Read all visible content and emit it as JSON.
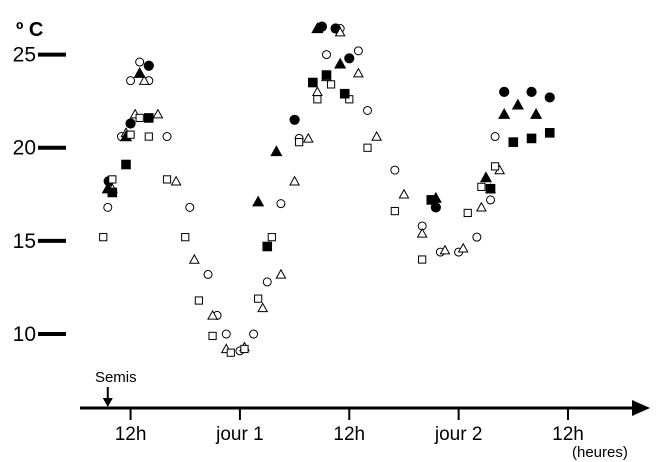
{
  "chart_data": {
    "type": "scatter",
    "title": "",
    "ylabel": "º C",
    "xlabel": "(heures)",
    "ylim": [
      8.5,
      27.5
    ],
    "y_ticks": [
      "25",
      "20",
      "15",
      "10"
    ],
    "y_tick_values": [
      25,
      20,
      15,
      10
    ],
    "x_ticks": [
      "12h",
      "jour 1",
      "12h",
      "jour 2",
      "12h"
    ],
    "x_tick_hours": [
      12,
      24,
      36,
      48,
      60
    ],
    "xlim": [
      7,
      69
    ],
    "annotation": {
      "label": "Semis",
      "hour": 9.5
    },
    "grid": false,
    "legend": "none",
    "series": [
      {
        "marker": "circle-open",
        "points": [
          [
            9.5,
            16.8
          ],
          [
            11,
            20.6
          ],
          [
            12,
            23.6
          ],
          [
            13,
            24.6
          ],
          [
            14,
            23.6
          ],
          [
            16,
            20.6
          ],
          [
            18.5,
            16.8
          ],
          [
            20.5,
            13.2
          ],
          [
            21.5,
            11
          ],
          [
            22.5,
            10
          ],
          [
            24,
            9.1
          ],
          [
            25.5,
            10
          ],
          [
            27,
            12.8
          ],
          [
            28.5,
            17
          ],
          [
            30.5,
            20.5
          ],
          [
            32,
            23.5
          ],
          [
            33.5,
            25
          ],
          [
            35,
            26.4
          ],
          [
            37,
            25.2
          ],
          [
            38,
            22
          ],
          [
            41,
            18.8
          ],
          [
            44,
            15.8
          ],
          [
            46,
            14.4
          ],
          [
            48,
            14.4
          ],
          [
            50,
            15.2
          ],
          [
            51.5,
            17.2
          ],
          [
            52,
            20.6
          ]
        ]
      },
      {
        "marker": "circle-filled",
        "points": [
          [
            9.6,
            18.2
          ],
          [
            12,
            21.3
          ],
          [
            14,
            24.4
          ],
          [
            30,
            21.5
          ],
          [
            33,
            26.5
          ],
          [
            34.5,
            26.4
          ],
          [
            36,
            24.8
          ],
          [
            45.5,
            16.8
          ],
          [
            53,
            23
          ],
          [
            56,
            23
          ],
          [
            58,
            22.7
          ]
        ]
      },
      {
        "marker": "triangle-open",
        "points": [
          [
            10,
            17.8
          ],
          [
            11.5,
            20.8
          ],
          [
            12.5,
            21.8
          ],
          [
            13.5,
            23.6
          ],
          [
            15,
            21.8
          ],
          [
            17,
            18.2
          ],
          [
            19,
            14
          ],
          [
            21,
            11
          ],
          [
            22.5,
            9.2
          ],
          [
            24.5,
            9.3
          ],
          [
            26.5,
            11.4
          ],
          [
            28.5,
            13.2
          ],
          [
            30,
            18.2
          ],
          [
            31.5,
            20.5
          ],
          [
            32.5,
            23
          ],
          [
            33.5,
            23.8
          ],
          [
            35,
            26.2
          ],
          [
            37,
            24
          ],
          [
            39,
            20.6
          ],
          [
            42,
            17.5
          ],
          [
            44,
            15.4
          ],
          [
            46.5,
            14.5
          ],
          [
            48.5,
            14.6
          ],
          [
            50.5,
            16.8
          ],
          [
            51.5,
            17.8
          ],
          [
            52.5,
            18.8
          ]
        ]
      },
      {
        "marker": "triangle-filled",
        "points": [
          [
            9.5,
            17.8
          ],
          [
            11.5,
            20.6
          ],
          [
            13,
            24
          ],
          [
            26,
            17.1
          ],
          [
            28,
            19.8
          ],
          [
            32.5,
            26.4
          ],
          [
            35,
            24.5
          ],
          [
            45.5,
            17.3
          ],
          [
            51,
            18.4
          ],
          [
            53,
            21.8
          ],
          [
            54.5,
            22.3
          ],
          [
            56.5,
            21.8
          ]
        ]
      },
      {
        "marker": "square-open",
        "points": [
          [
            9,
            15.2
          ],
          [
            10,
            18.3
          ],
          [
            12,
            20.7
          ],
          [
            13,
            21.6
          ],
          [
            14,
            20.6
          ],
          [
            16,
            18.3
          ],
          [
            18,
            15.2
          ],
          [
            19.5,
            11.8
          ],
          [
            21,
            9.9
          ],
          [
            23,
            9
          ],
          [
            24.5,
            9.2
          ],
          [
            26,
            11.9
          ],
          [
            27.5,
            15.2
          ],
          [
            30.5,
            20.3
          ],
          [
            32.5,
            22.6
          ],
          [
            34,
            23.4
          ],
          [
            36,
            22.6
          ],
          [
            38,
            20
          ],
          [
            41,
            16.6
          ],
          [
            44,
            14
          ],
          [
            49,
            16.5
          ],
          [
            50.5,
            17.9
          ],
          [
            52,
            19
          ]
        ]
      },
      {
        "marker": "square-filled",
        "points": [
          [
            10,
            17.6
          ],
          [
            11.5,
            19.1
          ],
          [
            14,
            21.6
          ],
          [
            27,
            14.7
          ],
          [
            32,
            23.5
          ],
          [
            33.5,
            23.9
          ],
          [
            35.5,
            22.9
          ],
          [
            45,
            17.2
          ],
          [
            51.5,
            17.8
          ],
          [
            54,
            20.3
          ],
          [
            56,
            20.5
          ],
          [
            58,
            20.8
          ]
        ]
      }
    ]
  }
}
